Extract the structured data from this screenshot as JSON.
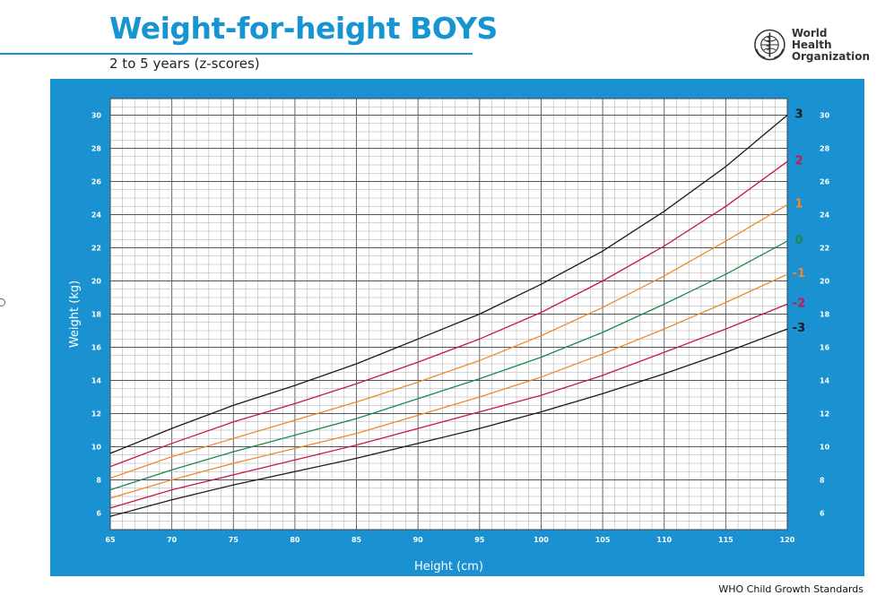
{
  "header": {
    "title": "Weight-for-height BOYS",
    "subtitle": "2 to 5 years (z-scores)"
  },
  "logo": {
    "icon": "who-emblem-icon",
    "line1": "World Health",
    "line2": "Organization"
  },
  "footer": "WHO Child Growth Standards",
  "colors": {
    "panel": "#1a92d2",
    "z3": "#1a1a1a",
    "z2": "#c8174c",
    "z1": "#ef8a2a",
    "z0": "#1a8a4a"
  },
  "chart_data": {
    "type": "line",
    "xlabel": "Height (cm)",
    "ylabel": "Weight (kg)",
    "xlim": [
      65,
      120
    ],
    "ylim": [
      5,
      31
    ],
    "x_ticks": [
      65,
      70,
      75,
      80,
      85,
      90,
      95,
      100,
      105,
      110,
      115,
      120
    ],
    "y_ticks": [
      6,
      8,
      10,
      12,
      14,
      16,
      18,
      20,
      22,
      24,
      26,
      28,
      30
    ],
    "grid": true,
    "x": [
      65,
      70,
      75,
      80,
      85,
      90,
      95,
      100,
      105,
      110,
      115,
      120
    ],
    "series": [
      {
        "name": "3",
        "color": "#1a1a1a",
        "values": [
          9.6,
          11.1,
          12.5,
          13.7,
          15.0,
          16.5,
          18.0,
          19.8,
          21.8,
          24.2,
          26.9,
          30.0
        ]
      },
      {
        "name": "2",
        "color": "#c8174c",
        "values": [
          8.8,
          10.2,
          11.5,
          12.6,
          13.8,
          15.1,
          16.5,
          18.1,
          20.0,
          22.1,
          24.5,
          27.2
        ]
      },
      {
        "name": "1",
        "color": "#ef8a2a",
        "values": [
          8.1,
          9.4,
          10.5,
          11.6,
          12.7,
          13.9,
          15.2,
          16.7,
          18.4,
          20.3,
          22.4,
          24.6
        ]
      },
      {
        "name": "0",
        "color": "#1a8a4a",
        "values": [
          7.4,
          8.6,
          9.7,
          10.7,
          11.7,
          12.9,
          14.1,
          15.4,
          16.9,
          18.6,
          20.4,
          22.4
        ]
      },
      {
        "name": "-1",
        "color": "#ef8a2a",
        "values": [
          6.9,
          8.0,
          9.0,
          9.9,
          10.8,
          11.9,
          13.0,
          14.2,
          15.6,
          17.1,
          18.7,
          20.4
        ]
      },
      {
        "name": "-2",
        "color": "#c8174c",
        "values": [
          6.3,
          7.4,
          8.3,
          9.2,
          10.1,
          11.1,
          12.1,
          13.1,
          14.3,
          15.7,
          17.1,
          18.6
        ]
      },
      {
        "name": "-3",
        "color": "#1a1a1a",
        "values": [
          5.8,
          6.8,
          7.7,
          8.5,
          9.3,
          10.2,
          11.1,
          12.1,
          13.2,
          14.4,
          15.7,
          17.1
        ]
      }
    ]
  }
}
